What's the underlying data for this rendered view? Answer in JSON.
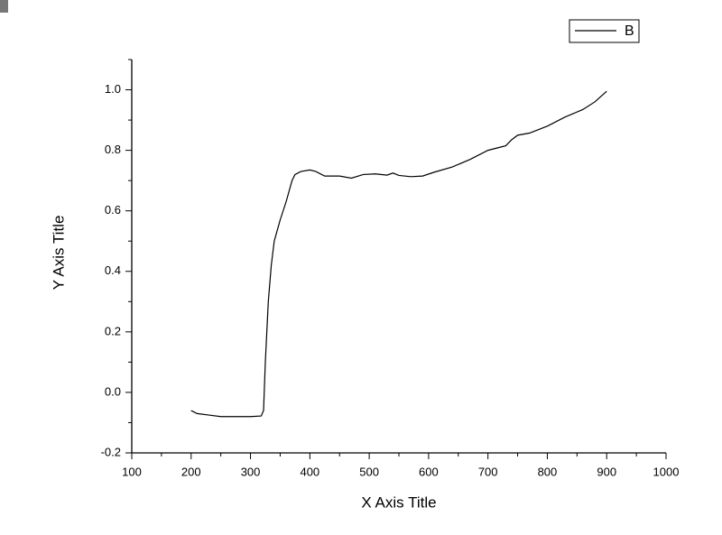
{
  "chart_data": {
    "type": "line",
    "xlabel": "X Axis Title",
    "ylabel": "Y Axis Title",
    "x": [
      200,
      210,
      230,
      250,
      280,
      300,
      318,
      322,
      325,
      330,
      335,
      340,
      350,
      360,
      370,
      375,
      385,
      400,
      410,
      425,
      450,
      470,
      490,
      510,
      530,
      540,
      550,
      570,
      590,
      610,
      640,
      670,
      700,
      720,
      730,
      740,
      750,
      770,
      800,
      830,
      860,
      880,
      900
    ],
    "series": [
      {
        "name": "B",
        "color": "#000000",
        "values": [
          -0.06,
          -0.07,
          -0.075,
          -0.08,
          -0.08,
          -0.08,
          -0.078,
          -0.06,
          0.1,
          0.3,
          0.42,
          0.5,
          0.57,
          0.63,
          0.7,
          0.72,
          0.73,
          0.735,
          0.73,
          0.715,
          0.715,
          0.708,
          0.72,
          0.722,
          0.718,
          0.725,
          0.717,
          0.713,
          0.715,
          0.728,
          0.745,
          0.77,
          0.8,
          0.81,
          0.815,
          0.835,
          0.85,
          0.857,
          0.88,
          0.91,
          0.935,
          0.96,
          0.995
        ]
      }
    ],
    "xlim": [
      100,
      1000
    ],
    "xticks": [
      100,
      200,
      300,
      400,
      500,
      600,
      700,
      800,
      900,
      1000
    ],
    "ylim": [
      -0.2,
      1.1
    ],
    "yticks": [
      -0.2,
      {
        "value": 0,
        "label": "0.0"
      },
      0.2,
      0.4,
      0.6,
      0.8,
      {
        "value": 1,
        "label": "1.0"
      }
    ],
    "legend": "top-right"
  }
}
